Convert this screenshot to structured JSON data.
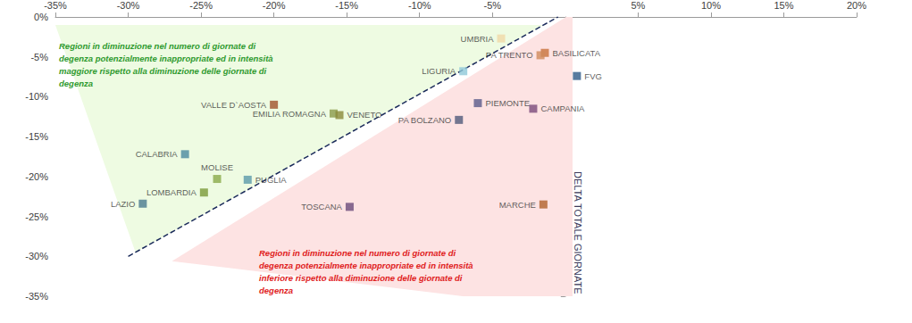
{
  "chart_data": {
    "type": "scatter",
    "y_label": "DELTA TOTALE GIORNATE",
    "xlim": [
      -35,
      20
    ],
    "ylim": [
      -35,
      0
    ],
    "xticks": [
      {
        "value": -35,
        "label": "-35%"
      },
      {
        "value": -30,
        "label": "-30%"
      },
      {
        "value": -25,
        "label": "-25%"
      },
      {
        "value": -20,
        "label": "-20%"
      },
      {
        "value": -15,
        "label": "-15%"
      },
      {
        "value": -10,
        "label": "-10%"
      },
      {
        "value": -5,
        "label": "-5%"
      },
      {
        "value": 5,
        "label": "5%"
      },
      {
        "value": 10,
        "label": "10%"
      },
      {
        "value": 15,
        "label": "15%"
      },
      {
        "value": 20,
        "label": "20%"
      }
    ],
    "yticks": [
      {
        "value": 0,
        "label": "0%"
      },
      {
        "value": -5,
        "label": "-5%"
      },
      {
        "value": -10,
        "label": "-10%"
      },
      {
        "value": -15,
        "label": "-15%"
      },
      {
        "value": -20,
        "label": "-20%"
      },
      {
        "value": -25,
        "label": "-25%"
      },
      {
        "value": -30,
        "label": "-30%"
      },
      {
        "value": -35,
        "label": "-35%"
      }
    ],
    "grid": false,
    "marker": "square",
    "data_labels": true,
    "points": [
      {
        "label": "UMBRIA",
        "x": -4.4,
        "y": -2.7,
        "color": "#f0d9a8"
      },
      {
        "label": "BASILICATA",
        "x": -1.4,
        "y": -4.5,
        "color": "#c8703a"
      },
      {
        "label": "PA TRENTO",
        "x": -1.7,
        "y": -4.8,
        "color": "#d08a5a"
      },
      {
        "label": "FVG",
        "x": 0.8,
        "y": -7.4,
        "color": "#2e5a87"
      },
      {
        "label": "LIGURIA",
        "x": -7.0,
        "y": -6.8,
        "color": "#8fc8d8"
      },
      {
        "label": "PIEMONTE",
        "x": -6.0,
        "y": -10.8,
        "color": "#5a5a8a"
      },
      {
        "label": "CAMPANIA",
        "x": -2.2,
        "y": -11.5,
        "color": "#7a4a7a"
      },
      {
        "label": "PA BOLZANO",
        "x": -7.3,
        "y": -12.9,
        "color": "#505a7a"
      },
      {
        "label": "VALLE D`AOSTA",
        "x": -20.0,
        "y": -11.0,
        "color": "#a0522d"
      },
      {
        "label": "EMILIA ROMAGNA",
        "x": -15.9,
        "y": -12.1,
        "color": "#8a9a4a"
      },
      {
        "label": "VENETO",
        "x": -15.5,
        "y": -12.3,
        "color": "#8a8a3a"
      },
      {
        "label": "CALABRIA",
        "x": -26.1,
        "y": -17.2,
        "color": "#4a8aa0"
      },
      {
        "label": "MOLISE",
        "x": -23.9,
        "y": -20.3,
        "color": "#8aaa4a"
      },
      {
        "label": "PUGLIA",
        "x": -21.8,
        "y": -20.4,
        "color": "#5a9aaa"
      },
      {
        "label": "LOMBARDIA",
        "x": -24.8,
        "y": -22.0,
        "color": "#7a9a3a"
      },
      {
        "label": "LAZIO",
        "x": -29.0,
        "y": -23.4,
        "color": "#4a7a90"
      },
      {
        "label": "TOSCANA",
        "x": -14.8,
        "y": -23.8,
        "color": "#6a4a7a"
      },
      {
        "label": "MARCHE",
        "x": -1.5,
        "y": -23.5,
        "color": "#b0602a"
      }
    ],
    "annotations": [
      {
        "text": "Regioni in diminuzione nel numero di giornate di\ndegenza potenzialmente inappropriate ed in intensità\nmaggiore rispetto alla diminuzione delle giornate di\ndegenza",
        "color": "#2e9a2e"
      },
      {
        "text": "Regioni in diminuzione nel numero di giornate di\ndegenza potenzialmente inappropriate ed in intensità\ninferiore rispetto alla diminuzione delle giornate di\ndegenza",
        "color": "#e0201b"
      }
    ]
  }
}
